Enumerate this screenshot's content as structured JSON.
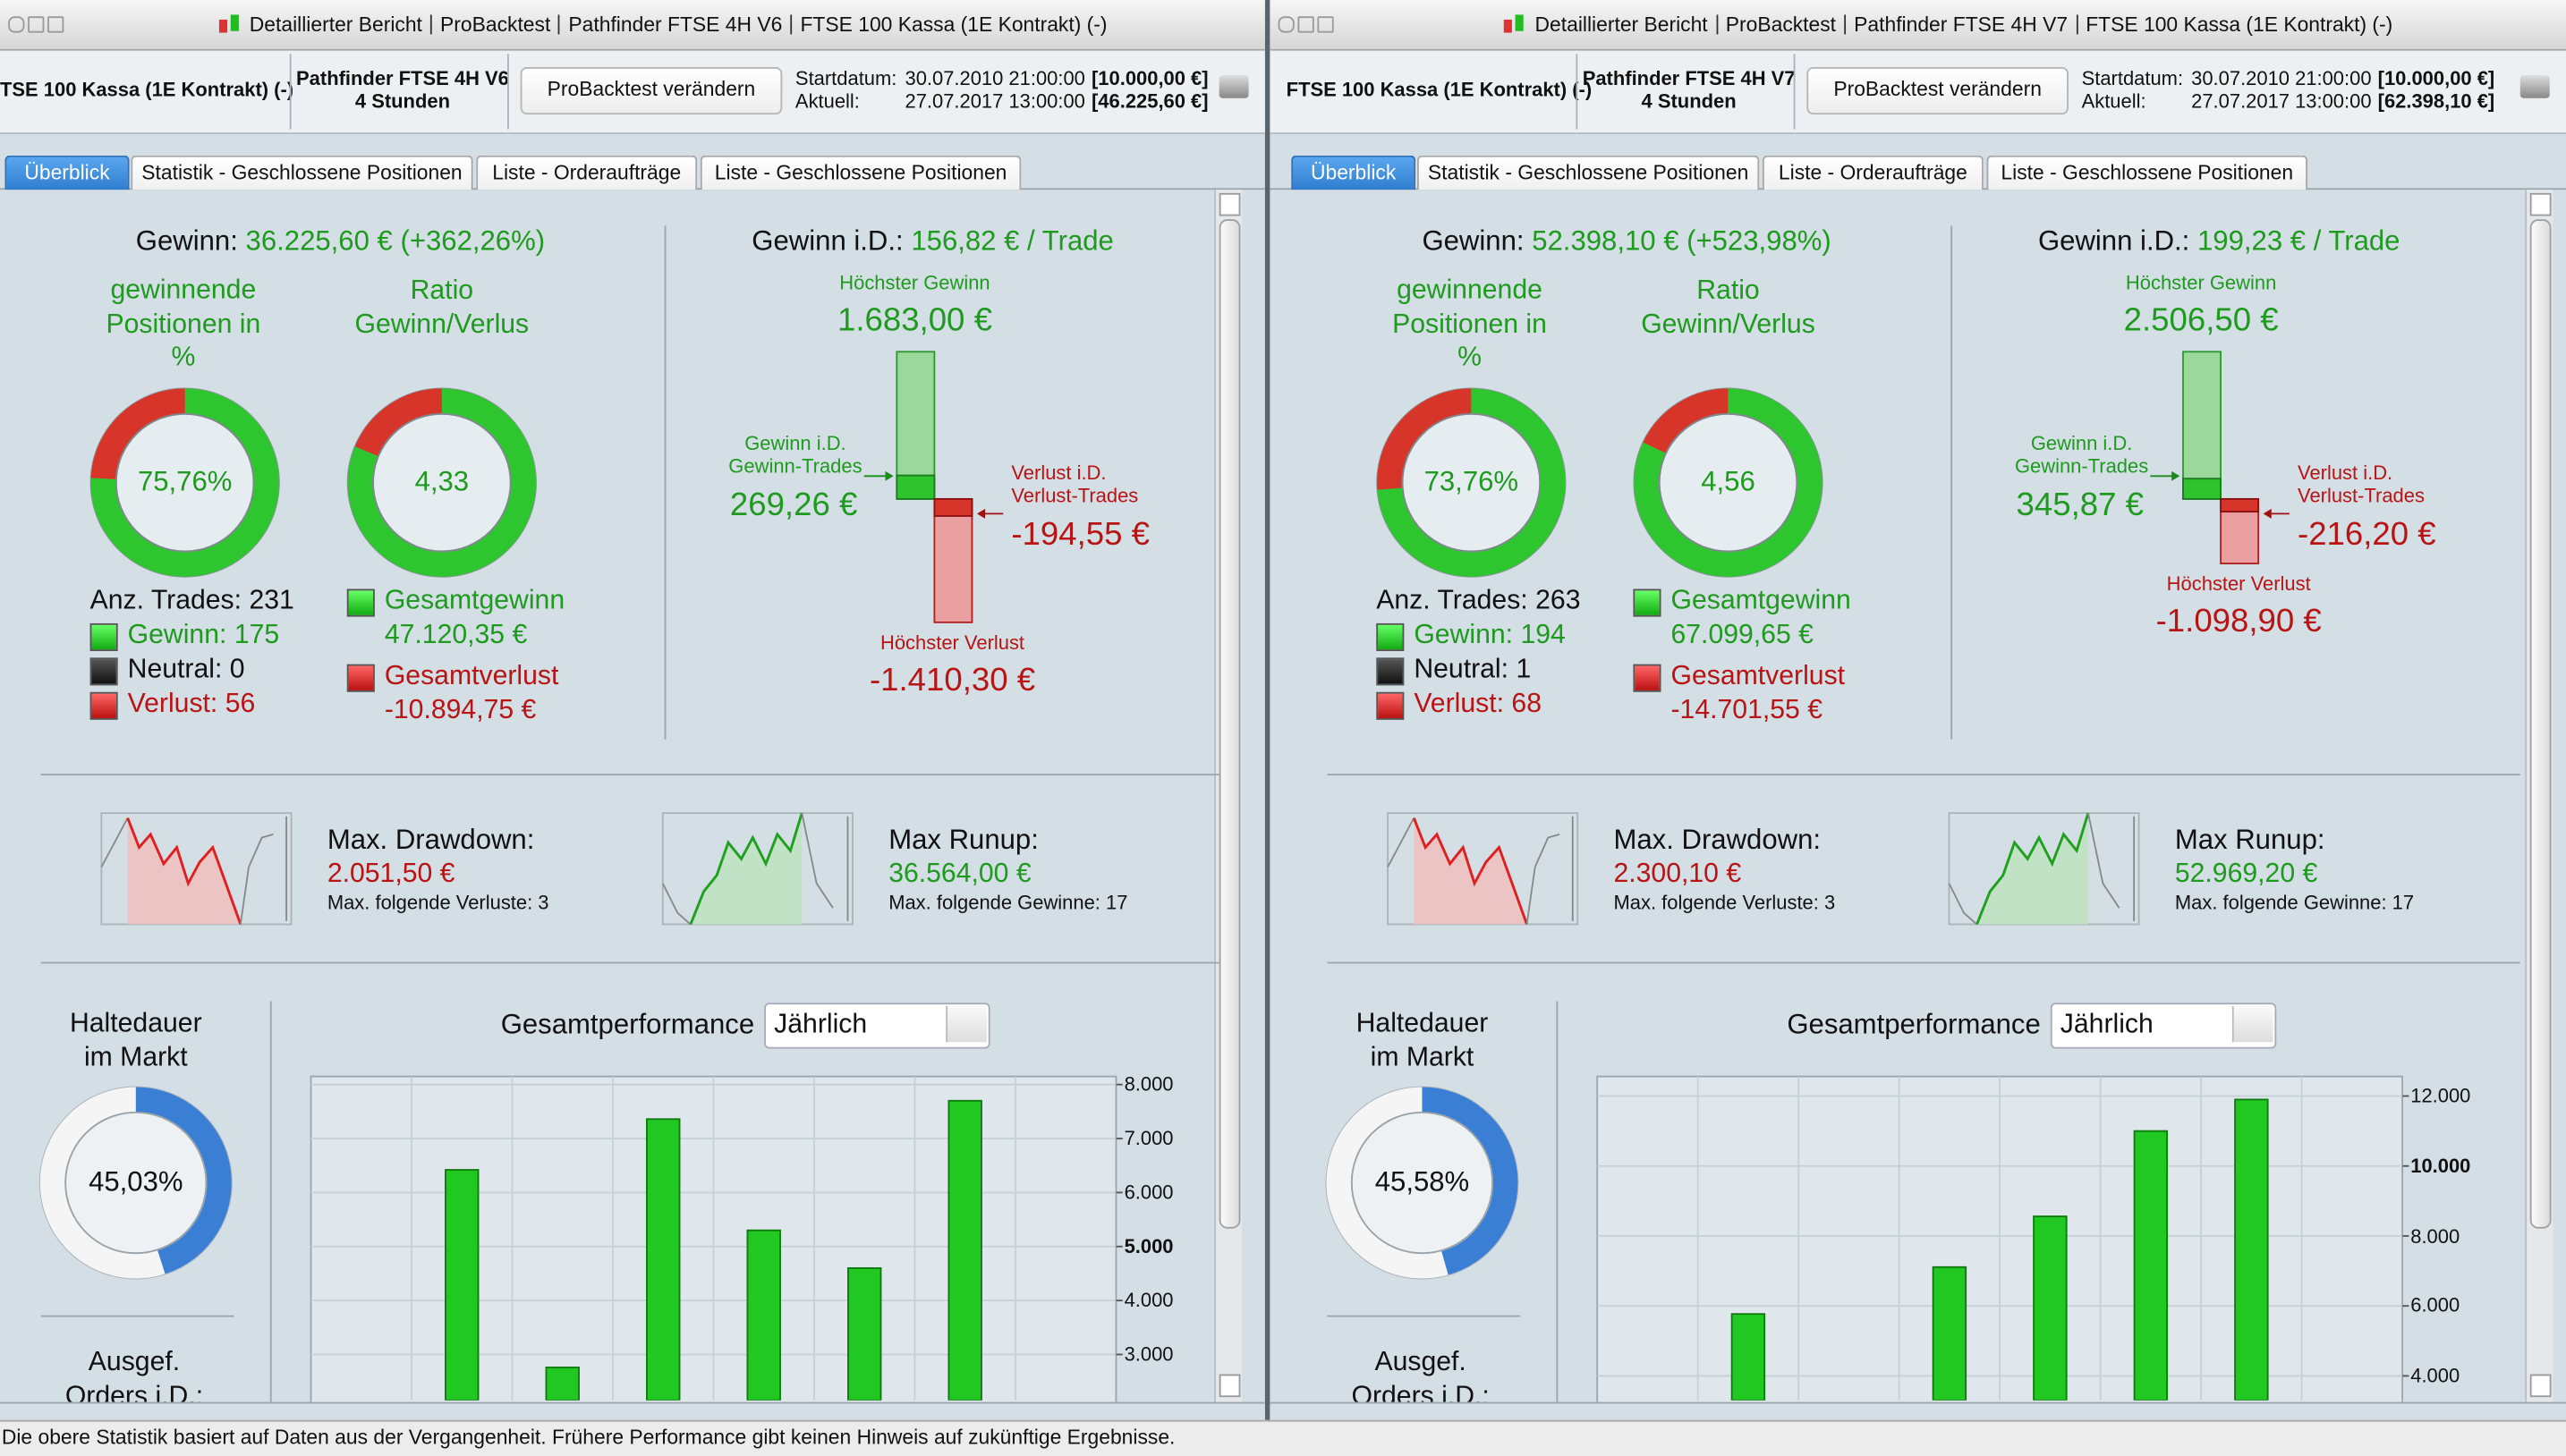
{
  "panels": [
    {
      "window_title": [
        "Detaillierter Bericht",
        "ProBacktest",
        "Pathfinder FTSE 4H V6",
        "FTSE 100 Kassa (1E Kontrakt) (-)"
      ],
      "header": {
        "instrument": "TSE 100 Kassa (1E Kontrakt) (-)",
        "strategy": "Pathfinder FTSE 4H V6",
        "timeframe": "4 Stunden",
        "button": "ProBacktest verändern",
        "start_label": "Startdatum:",
        "start_date": "30.07.2010 21:00:00",
        "start_capital": "[10.000,00 €]",
        "current_label": "Aktuell:",
        "current_date": "27.07.2017 13:00:00",
        "current_capital": "[46.225,60 €]"
      },
      "tabs": [
        "Überblick",
        "Statistik - Geschlossene Positionen",
        "Liste - Orderaufträge",
        "Liste - Geschlossene Positionen"
      ],
      "summary": {
        "gain": {
          "label": "Gewinn:",
          "value": "36.225,60 € (+362,26%)"
        },
        "gain_per_trade": {
          "label": "Gewinn i.D.:",
          "value": "156,82 € / Trade"
        }
      },
      "win_rate": {
        "title": "gewinnende\nPositionen in\n%",
        "donut": {
          "value": 75.76,
          "label": "75,76%"
        }
      },
      "ratio": {
        "title": "Ratio\nGewinn/Verlus",
        "donut": {
          "value": 4.33,
          "label": "4,33"
        }
      },
      "trades": {
        "total": {
          "label": "Anz. Trades:",
          "value": 231
        },
        "wins": {
          "label": "Gewinn:",
          "value": 175
        },
        "neutral": {
          "label": "Neutral:",
          "value": 0
        },
        "losses": {
          "label": "Verlust:",
          "value": 56
        }
      },
      "totals": {
        "profit": {
          "label": "Gesamtgewinn",
          "value": "47.120,35 €"
        },
        "loss": {
          "label": "Gesamtverlust",
          "value": "-10.894,75 €"
        }
      },
      "average_chart": {
        "max_gain": {
          "label": "Höchster Gewinn",
          "amount": {
            "value": 1683.0,
            "label": "1.683,00 €"
          }
        },
        "avg_gain": {
          "label": "Gewinn i.D.\nGewinn-Trades",
          "amount": {
            "value": 269.26,
            "label": "269,26 €"
          }
        },
        "avg_loss": {
          "label": "Verlust i.D.\nVerlust-Trades",
          "amount": {
            "value": -194.55,
            "label": "-194,55 €"
          }
        },
        "max_loss": {
          "label": "Höchster Verlust",
          "amount": {
            "value": -1410.3,
            "label": "-1.410,30 €"
          }
        }
      },
      "drawdown": {
        "label": "Max. Drawdown:",
        "value": "2.051,50 €",
        "sub": "Max. folgende Verluste: 3"
      },
      "runup": {
        "label": "Max Runup:",
        "value": "36.564,00 €",
        "sub": "Max. folgende Gewinne: 17"
      },
      "holding": {
        "title": "Haltedauer\nim Markt",
        "donut": {
          "value": 45.03,
          "label": "45,03%"
        },
        "next_title": "Ausgef.\nOrders i.D.:"
      },
      "performance": {
        "title": "Gesamtperformance",
        "period": "Jährlich",
        "chart": {
          "type": "bar",
          "categories": [
            null,
            null,
            null,
            null,
            null,
            null,
            null,
            null
          ],
          "values": [
            null,
            6420,
            2760,
            7360,
            5300,
            4600,
            7700,
            null
          ],
          "color": "#22c822",
          "ylim": [
            2150,
            8150
          ],
          "yticks": [
            {
              "value": 8000,
              "label": "8.000"
            },
            {
              "value": 7000,
              "label": "7.000"
            },
            {
              "value": 6000,
              "label": "6.000"
            },
            {
              "value": 5000,
              "label": "5.000",
              "bold": true
            },
            {
              "value": 4000,
              "label": "4.000"
            },
            {
              "value": 3000,
              "label": "3.000"
            }
          ]
        }
      }
    },
    {
      "window_title": [
        "Detaillierter Bericht",
        "ProBacktest",
        "Pathfinder FTSE 4H V7",
        "FTSE 100 Kassa (1E Kontrakt) (-)"
      ],
      "header": {
        "instrument": "FTSE 100 Kassa (1E Kontrakt) (-)",
        "strategy": "Pathfinder FTSE 4H V7",
        "timeframe": "4 Stunden",
        "button": "ProBacktest verändern",
        "start_label": "Startdatum:",
        "start_date": "30.07.2010 21:00:00",
        "start_capital": "[10.000,00 €]",
        "current_label": "Aktuell:",
        "current_date": "27.07.2017 13:00:00",
        "current_capital": "[62.398,10 €]"
      },
      "tabs": [
        "Überblick",
        "Statistik - Geschlossene Positionen",
        "Liste - Orderaufträge",
        "Liste - Geschlossene Positionen"
      ],
      "summary": {
        "gain": {
          "label": "Gewinn:",
          "value": "52.398,10 € (+523,98%)"
        },
        "gain_per_trade": {
          "label": "Gewinn i.D.:",
          "value": "199,23 € / Trade"
        }
      },
      "win_rate": {
        "title": "gewinnende\nPositionen in\n%",
        "donut": {
          "value": 73.76,
          "label": "73,76%"
        }
      },
      "ratio": {
        "title": "Ratio\nGewinn/Verlus",
        "donut": {
          "value": 4.56,
          "label": "4,56"
        }
      },
      "trades": {
        "total": {
          "label": "Anz. Trades:",
          "value": 263
        },
        "wins": {
          "label": "Gewinn:",
          "value": 194
        },
        "neutral": {
          "label": "Neutral:",
          "value": 1
        },
        "losses": {
          "label": "Verlust:",
          "value": 68
        }
      },
      "totals": {
        "profit": {
          "label": "Gesamtgewinn",
          "value": "67.099,65 €"
        },
        "loss": {
          "label": "Gesamtverlust",
          "value": "-14.701,55 €"
        }
      },
      "average_chart": {
        "max_gain": {
          "label": "Höchster Gewinn",
          "amount": {
            "value": 2506.5,
            "label": "2.506,50 €"
          }
        },
        "avg_gain": {
          "label": "Gewinn i.D.\nGewinn-Trades",
          "amount": {
            "value": 345.87,
            "label": "345,87 €"
          }
        },
        "avg_loss": {
          "label": "Verlust i.D.\nVerlust-Trades",
          "amount": {
            "value": -216.2,
            "label": "-216,20 €"
          }
        },
        "max_loss": {
          "label": "Höchster Verlust",
          "amount": {
            "value": -1098.9,
            "label": "-1.098,90 €"
          }
        }
      },
      "drawdown": {
        "label": "Max. Drawdown:",
        "value": "2.300,10 €",
        "sub": "Max. folgende Verluste: 3"
      },
      "runup": {
        "label": "Max Runup:",
        "value": "52.969,20 €",
        "sub": "Max. folgende Gewinne: 17"
      },
      "holding": {
        "title": "Haltedauer\nim Markt",
        "donut": {
          "value": 45.58,
          "label": "45,58%"
        },
        "next_title": "Ausgef.\nOrders i.D.:"
      },
      "performance": {
        "title": "Gesamtperformance",
        "period": "Jährlich",
        "chart": {
          "type": "bar",
          "categories": [
            null,
            null,
            null,
            null,
            null,
            null,
            null,
            null
          ],
          "values": [
            null,
            5770,
            null,
            7110,
            8560,
            11000,
            11900,
            null
          ],
          "color": "#22c822",
          "ylim": [
            3300,
            12560
          ],
          "yticks": [
            {
              "value": 12000,
              "label": "12.000"
            },
            {
              "value": 10000,
              "label": "10.000",
              "bold": true
            },
            {
              "value": 8000,
              "label": "8.000"
            },
            {
              "value": 6000,
              "label": "6.000"
            },
            {
              "value": 4000,
              "label": "4.000"
            }
          ]
        }
      }
    }
  ],
  "footer": "Die obere Statistik basiert auf Daten aus der Vergangenheit. Frühere Performance gibt keinen Hinweis auf zukünftige Ergebnisse."
}
